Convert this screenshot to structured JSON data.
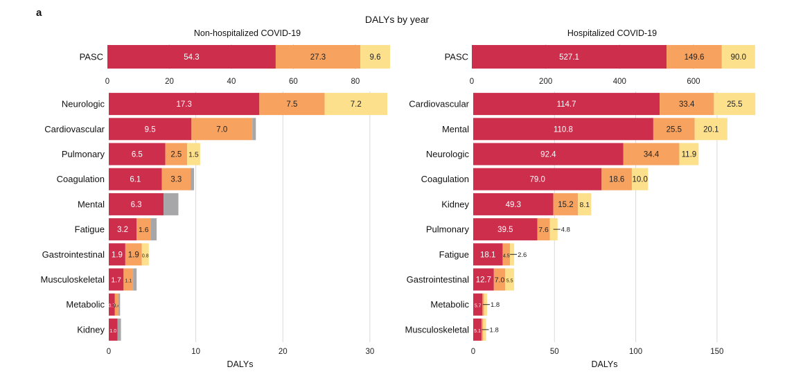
{
  "figure": {
    "panel_label": "a",
    "supertitle": "DALYs by year"
  },
  "colors": {
    "year1": "#cc2e4c",
    "year2": "#f7a25e",
    "year3": "#fde08c",
    "extra": "#a7a7a9",
    "grid": "#d9d9d9"
  },
  "chart_data": [
    {
      "type": "bar",
      "orientation": "horizontal",
      "stacked": true,
      "title": "Non-hospitalized COVID-19",
      "categories": [
        "PASC"
      ],
      "series": [
        {
          "values": [
            54.3
          ],
          "labels": [
            "54.3"
          ]
        },
        {
          "values": [
            27.3
          ],
          "labels": [
            "27.3"
          ]
        },
        {
          "values": [
            9.6
          ],
          "labels": [
            "9.6"
          ]
        }
      ],
      "xlim": [
        0,
        91.2
      ],
      "xticks": [
        0,
        20,
        40,
        60,
        80
      ],
      "xlabel": "",
      "grid": true
    },
    {
      "type": "bar",
      "orientation": "horizontal",
      "stacked": true,
      "categories": [
        "Neurologic",
        "Cardiovascular",
        "Pulmonary",
        "Coagulation",
        "Mental",
        "Fatigue",
        "Gastrointestinal",
        "Musculoskeletal",
        "Metabolic",
        "Kidney"
      ],
      "series": [
        {
          "values": [
            17.3,
            9.5,
            6.5,
            6.1,
            6.3,
            3.2,
            1.9,
            1.7,
            0.7,
            1.0
          ],
          "labels": [
            "17.3",
            "9.5",
            "6.5",
            "6.1",
            "6.3",
            "3.2",
            "1.9",
            "1.7",
            "0.7",
            "1.0"
          ]
        },
        {
          "values": [
            7.5,
            7.0,
            2.5,
            3.3,
            0,
            1.6,
            1.9,
            1.1,
            0.4,
            0
          ],
          "labels": [
            "7.5",
            "7.0",
            "2.5",
            "3.3",
            "",
            "1.6",
            "1.9",
            "1.1",
            "0.4",
            ""
          ]
        },
        {
          "values": [
            7.2,
            0,
            1.5,
            0,
            0,
            0,
            0.8,
            0,
            0,
            0
          ],
          "labels": [
            "7.2",
            "",
            "1.5",
            "",
            "",
            "",
            "0.8",
            "",
            "",
            ""
          ]
        },
        {
          "values": [
            0,
            0.4,
            0,
            0.4,
            1.7,
            0.7,
            0,
            0.4,
            0.2,
            0.4
          ],
          "labels": [
            "",
            "",
            "",
            "",
            "",
            "",
            "",
            "",
            "",
            ""
          ]
        }
      ],
      "xlim": [
        0,
        32.4
      ],
      "xticks": [
        0,
        10,
        20,
        30
      ],
      "xlabel": "DALYs",
      "grid": true
    },
    {
      "type": "bar",
      "orientation": "horizontal",
      "stacked": true,
      "title": "Hospitalized COVID-19",
      "categories": [
        "PASC"
      ],
      "series": [
        {
          "values": [
            527.1
          ],
          "labels": [
            "527.1"
          ]
        },
        {
          "values": [
            149.6
          ],
          "labels": [
            "149.6"
          ]
        },
        {
          "values": [
            90.0
          ],
          "labels": [
            "90.0"
          ]
        }
      ],
      "xlim": [
        0,
        767
      ],
      "xticks": [
        0,
        200,
        400,
        600
      ],
      "xlabel": "",
      "grid": true
    },
    {
      "type": "bar",
      "orientation": "horizontal",
      "stacked": true,
      "categories": [
        "Cardiovascular",
        "Mental",
        "Neurologic",
        "Coagulation",
        "Kidney",
        "Pulmonary",
        "Fatigue",
        "Gastrointestinal",
        "Metabolic",
        "Musculoskeletal"
      ],
      "series": [
        {
          "values": [
            114.7,
            110.8,
            92.4,
            79.0,
            49.3,
            39.5,
            18.1,
            12.7,
            5.7,
            5.1
          ],
          "labels": [
            "114.7",
            "110.8",
            "92.4",
            "79.0",
            "49.3",
            "39.5",
            "18.1",
            "12.7",
            "5.7",
            "5.1"
          ]
        },
        {
          "values": [
            33.4,
            25.5,
            34.4,
            18.6,
            15.2,
            7.6,
            4.5,
            7.0,
            1.0,
            1.0
          ],
          "labels": [
            "33.4",
            "25.5",
            "34.4",
            "18.6",
            "15.2",
            "7.6",
            "4.5",
            "7.0",
            "",
            ""
          ]
        },
        {
          "values": [
            25.5,
            20.1,
            11.9,
            10.0,
            8.1,
            4.8,
            2.6,
            5.5,
            1.8,
            1.8
          ],
          "labels": [
            "25.5",
            "20.1",
            "11.9",
            "10.0",
            "8.1",
            "",
            "",
            "5.5",
            "",
            ""
          ]
        }
      ],
      "callouts": [
        {
          "category": "Pulmonary",
          "text": "4.8"
        },
        {
          "category": "Fatigue",
          "text": "2.6"
        },
        {
          "category": "Metabolic",
          "text": "1.8"
        },
        {
          "category": "Musculoskeletal",
          "text": "1.8"
        }
      ],
      "xlim": [
        0,
        173.5
      ],
      "xticks": [
        0,
        50,
        100,
        150
      ],
      "xlabel": "DALYs",
      "grid": true
    }
  ]
}
